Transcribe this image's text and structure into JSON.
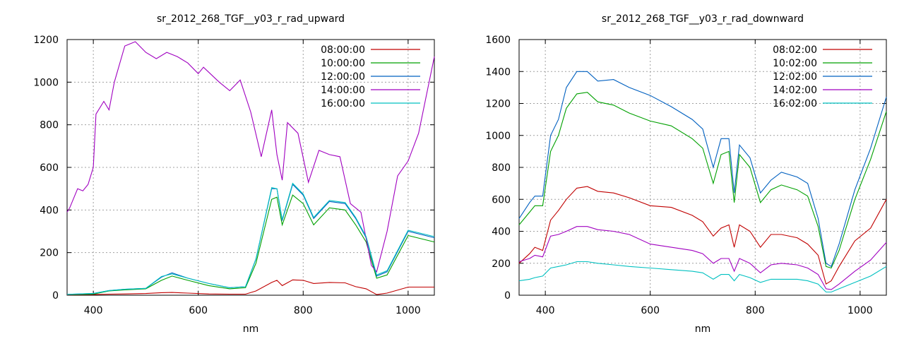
{
  "chart_data": [
    {
      "type": "line",
      "title": "sr_2012_268_TGF__y03_r_rad_upward",
      "xlabel": "nm",
      "ylabel": "",
      "xlim": [
        350,
        1050
      ],
      "ylim": [
        0,
        1200
      ],
      "xticks": [
        400,
        600,
        800,
        1000
      ],
      "yticks": [
        0,
        200,
        400,
        600,
        800,
        1000,
        1200
      ],
      "grid": true,
      "legend_position": "top-right",
      "series": [
        {
          "name": "08:00:00",
          "color": "#c00000",
          "x": [
            350,
            400,
            430,
            460,
            500,
            530,
            550,
            580,
            620,
            660,
            690,
            710,
            740,
            750,
            760,
            780,
            800,
            820,
            850,
            880,
            900,
            920,
            940,
            960,
            1000,
            1050
          ],
          "y": [
            2,
            3,
            5,
            6,
            8,
            12,
            13,
            10,
            6,
            5,
            5,
            20,
            60,
            70,
            45,
            72,
            70,
            55,
            60,
            58,
            40,
            30,
            3,
            10,
            38,
            38
          ]
        },
        {
          "name": "10:00:00",
          "color": "#00a000",
          "x": [
            350,
            400,
            430,
            460,
            500,
            530,
            550,
            580,
            620,
            660,
            690,
            710,
            740,
            750,
            760,
            780,
            800,
            820,
            850,
            880,
            900,
            920,
            940,
            960,
            1000,
            1050
          ],
          "y": [
            3,
            5,
            20,
            25,
            30,
            70,
            90,
            70,
            45,
            30,
            35,
            150,
            450,
            460,
            330,
            470,
            430,
            330,
            410,
            400,
            330,
            250,
            80,
            95,
            280,
            250
          ]
        },
        {
          "name": "12:00:00",
          "color": "#0060c0",
          "x": [
            350,
            400,
            430,
            460,
            500,
            530,
            550,
            580,
            620,
            660,
            690,
            710,
            740,
            750,
            760,
            780,
            800,
            820,
            850,
            880,
            900,
            920,
            940,
            960,
            1000,
            1050
          ],
          "y": [
            4,
            8,
            22,
            28,
            32,
            85,
            105,
            80,
            55,
            35,
            40,
            170,
            500,
            500,
            350,
            520,
            470,
            360,
            440,
            430,
            360,
            270,
            90,
            110,
            300,
            270
          ]
        },
        {
          "name": "14:00:00",
          "color": "#a000c0",
          "x": [
            350,
            355,
            370,
            380,
            390,
            400,
            405,
            420,
            430,
            440,
            460,
            480,
            500,
            520,
            540,
            560,
            580,
            600,
            610,
            640,
            660,
            680,
            700,
            720,
            740,
            750,
            760,
            770,
            790,
            810,
            830,
            850,
            870,
            890,
            910,
            930,
            940,
            960,
            980,
            1000,
            1020,
            1050
          ],
          "y": [
            390,
            410,
            500,
            490,
            520,
            600,
            850,
            910,
            870,
            1000,
            1170,
            1190,
            1140,
            1110,
            1140,
            1120,
            1090,
            1040,
            1070,
            1000,
            960,
            1010,
            860,
            650,
            870,
            660,
            540,
            810,
            760,
            530,
            680,
            660,
            650,
            430,
            390,
            140,
            110,
            300,
            560,
            630,
            760,
            1120
          ]
        },
        {
          "name": "16:00:00",
          "color": "#00c0c0",
          "x": [
            350,
            400,
            430,
            460,
            500,
            530,
            550,
            580,
            620,
            660,
            690,
            710,
            740,
            750,
            760,
            780,
            800,
            820,
            850,
            880,
            900,
            920,
            940,
            960,
            1000,
            1050
          ],
          "y": [
            4,
            8,
            22,
            28,
            32,
            88,
            100,
            80,
            55,
            35,
            40,
            170,
            505,
            500,
            355,
            525,
            475,
            365,
            445,
            435,
            365,
            275,
            95,
            115,
            305,
            275
          ]
        }
      ]
    },
    {
      "type": "line",
      "title": "sr_2012_268_TGF__y03_r_rad_downward",
      "xlabel": "nm",
      "ylabel": "",
      "xlim": [
        350,
        1050
      ],
      "ylim": [
        0,
        1600
      ],
      "xticks": [
        400,
        600,
        800,
        1000
      ],
      "yticks": [
        0,
        200,
        400,
        600,
        800,
        1000,
        1200,
        1400,
        1600
      ],
      "grid": true,
      "legend_position": "top-right",
      "series": [
        {
          "name": "08:02:00",
          "color": "#c00000",
          "x": [
            350,
            370,
            380,
            395,
            410,
            425,
            440,
            460,
            480,
            500,
            530,
            560,
            600,
            640,
            680,
            700,
            720,
            735,
            750,
            760,
            770,
            790,
            810,
            830,
            850,
            880,
            900,
            920,
            935,
            945,
            960,
            990,
            1020,
            1050
          ],
          "y": [
            200,
            260,
            300,
            280,
            470,
            530,
            600,
            670,
            680,
            650,
            640,
            610,
            560,
            550,
            500,
            460,
            370,
            420,
            440,
            300,
            440,
            400,
            300,
            380,
            380,
            360,
            320,
            250,
            70,
            90,
            180,
            340,
            420,
            600
          ]
        },
        {
          "name": "10:02:00",
          "color": "#00a000",
          "x": [
            350,
            370,
            380,
            395,
            410,
            425,
            440,
            460,
            480,
            500,
            530,
            560,
            600,
            640,
            680,
            700,
            720,
            735,
            750,
            760,
            770,
            790,
            810,
            830,
            850,
            880,
            900,
            920,
            935,
            945,
            960,
            990,
            1020,
            1050
          ],
          "y": [
            440,
            520,
            560,
            560,
            900,
            1000,
            1170,
            1260,
            1270,
            1210,
            1190,
            1140,
            1090,
            1060,
            980,
            920,
            700,
            880,
            900,
            580,
            880,
            800,
            580,
            660,
            690,
            660,
            620,
            430,
            180,
            170,
            280,
            600,
            850,
            1150
          ]
        },
        {
          "name": "12:02:00",
          "color": "#0060c0",
          "x": [
            350,
            370,
            380,
            395,
            410,
            425,
            440,
            460,
            480,
            500,
            530,
            560,
            600,
            640,
            680,
            700,
            720,
            735,
            750,
            760,
            770,
            790,
            810,
            830,
            850,
            880,
            900,
            920,
            935,
            945,
            960,
            990,
            1020,
            1050
          ],
          "y": [
            480,
            580,
            620,
            620,
            1000,
            1100,
            1300,
            1400,
            1400,
            1340,
            1350,
            1300,
            1250,
            1180,
            1100,
            1040,
            800,
            980,
            980,
            640,
            940,
            860,
            640,
            720,
            770,
            740,
            700,
            480,
            200,
            180,
            320,
            660,
            920,
            1240
          ]
        },
        {
          "name": "14:02:00",
          "color": "#a000c0",
          "x": [
            350,
            370,
            380,
            395,
            410,
            425,
            440,
            460,
            480,
            500,
            530,
            560,
            600,
            640,
            680,
            700,
            720,
            735,
            750,
            760,
            770,
            790,
            810,
            830,
            850,
            880,
            900,
            920,
            935,
            945,
            960,
            990,
            1020,
            1050
          ],
          "y": [
            210,
            230,
            250,
            240,
            370,
            380,
            400,
            430,
            430,
            410,
            400,
            380,
            320,
            300,
            280,
            260,
            200,
            230,
            230,
            150,
            230,
            200,
            140,
            190,
            200,
            190,
            170,
            130,
            40,
            35,
            70,
            150,
            220,
            330
          ]
        },
        {
          "name": "16:02:00",
          "color": "#00c0c0",
          "x": [
            350,
            370,
            380,
            395,
            410,
            425,
            440,
            460,
            480,
            500,
            530,
            560,
            600,
            640,
            680,
            700,
            720,
            735,
            750,
            760,
            770,
            790,
            810,
            830,
            850,
            880,
            900,
            920,
            935,
            945,
            960,
            990,
            1020,
            1050
          ],
          "y": [
            90,
            100,
            110,
            120,
            170,
            180,
            190,
            210,
            210,
            200,
            190,
            180,
            170,
            160,
            150,
            140,
            100,
            130,
            130,
            90,
            130,
            110,
            80,
            100,
            100,
            100,
            90,
            70,
            20,
            20,
            40,
            80,
            120,
            180
          ]
        }
      ]
    }
  ]
}
